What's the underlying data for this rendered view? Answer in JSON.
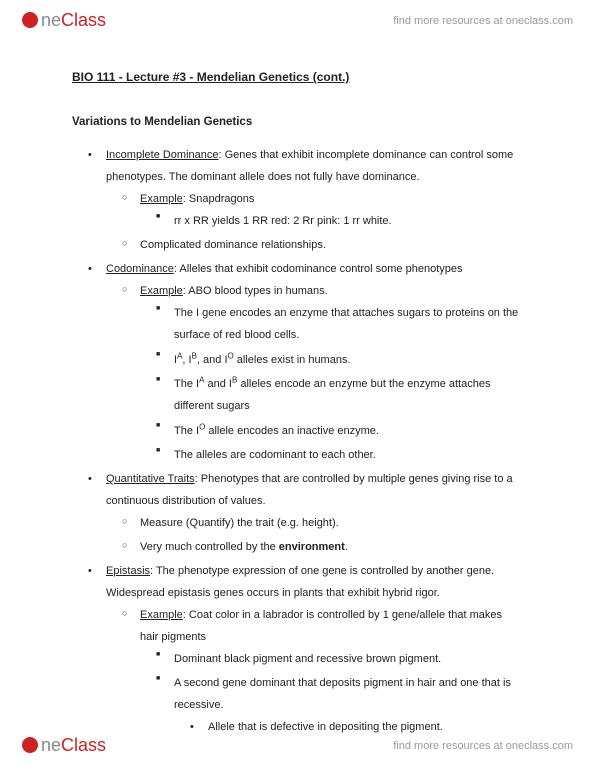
{
  "brand": {
    "part1": "ne",
    "part2": "Class"
  },
  "header_link": "find more resources at oneclass.com",
  "footer_link": "find more resources at oneclass.com",
  "title": "BIO 111 - Lecture #3 - Mendelian Genetics (cont.)",
  "section_head": "Variations to Mendelian Genetics",
  "items": [
    {
      "term": "Incomplete Dominance",
      "text": ": Genes that exhibit incomplete dominance can control some phenotypes. The dominant allele does not fully have dominance.",
      "sub": [
        {
          "label": "Example",
          "text": ": Snapdragons",
          "sub": [
            {
              "text": "rr x RR yields 1 RR red: 2 Rr pink: 1 rr white."
            }
          ]
        },
        {
          "text": "Complicated dominance relationships."
        }
      ]
    },
    {
      "term": "Codominance",
      "text": ": Alleles that exhibit codominance control some phenotypes",
      "sub": [
        {
          "label": "Example",
          "text": ": ABO blood types in humans.",
          "sub": [
            {
              "text": "The I gene encodes an enzyme that attaches sugars to proteins on the surface of red blood cells."
            },
            {
              "html": "I<sup>A</sup>, I<sup>B</sup>, and I<sup>O</sup> alleles exist in humans."
            },
            {
              "html": "The I<sup>A</sup> and I<sup>B</sup> alleles encode an enzyme but the enzyme attaches different sugars"
            },
            {
              "html": "The I<sup>O</sup> allele encodes an inactive enzyme."
            },
            {
              "text": "The alleles are codominant to each other."
            }
          ]
        }
      ]
    },
    {
      "term": "Quantitative Traits",
      "text": ": Phenotypes that are controlled by multiple genes giving rise to a continuous distribution of values.",
      "sub": [
        {
          "text": "Measure (Quantify) the trait (e.g. height)."
        },
        {
          "html": "Very much controlled by the <span class='b'>environment</span>."
        }
      ]
    },
    {
      "term": "Epistasis",
      "text": ": The phenotype expression of one gene is controlled by another gene. Widespread epistasis genes occurs in plants that exhibit hybrid rigor.",
      "sub": [
        {
          "label": "Example",
          "text": ": Coat color in a labrador is controlled by 1 gene/allele that makes hair pigments",
          "sub": [
            {
              "text": "Dominant black pigment and recessive brown pigment."
            },
            {
              "text": "A second gene dominant that deposits pigment in hair and one that is recessive.",
              "sub": [
                {
                  "text": "Allele that is defective in depositing the pigment."
                }
              ]
            }
          ]
        }
      ]
    }
  ]
}
